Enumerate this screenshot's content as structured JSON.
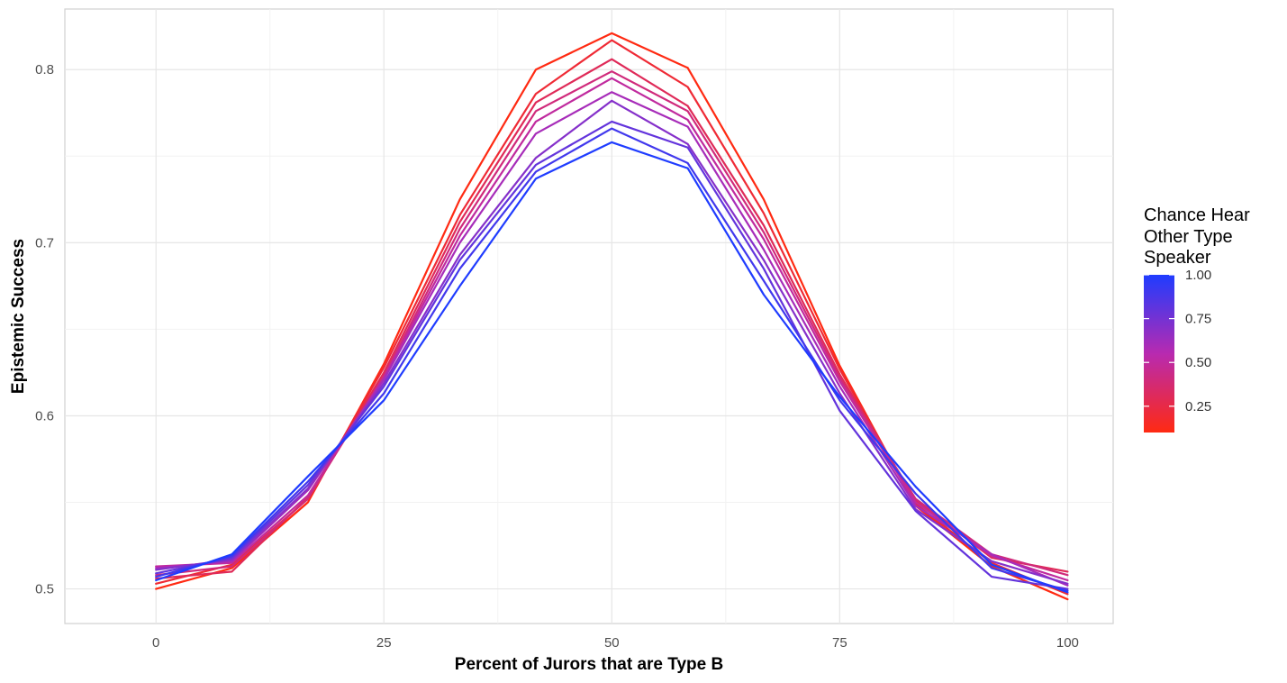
{
  "chart_data": {
    "type": "line",
    "xlabel": "Percent of Jurors that are Type B",
    "ylabel": "Epistemic Success",
    "xlim": [
      -10,
      105
    ],
    "ylim": [
      0.48,
      0.835
    ],
    "xticks": [
      0,
      25,
      50,
      75,
      100
    ],
    "xtick_labels": [
      "0",
      "25",
      "50",
      "75",
      "100"
    ],
    "yticks": [
      0.5,
      0.6,
      0.7,
      0.8
    ],
    "ytick_labels": [
      "0.5",
      "0.6",
      "0.7",
      "0.8"
    ],
    "grid": true,
    "legend": {
      "title_lines": [
        "Chance Hear",
        "Other Type",
        "Speaker"
      ],
      "type": "colorbar",
      "placement": "right",
      "range": [
        0.1,
        1.0
      ],
      "ticks": [
        1.0,
        0.75,
        0.5,
        0.25
      ],
      "tick_labels": [
        "1.00",
        "0.75",
        "0.50",
        "0.25"
      ],
      "color_low": "#ff2a12",
      "color_high": "#1f3cff"
    },
    "x": [
      0,
      8.33,
      16.67,
      25,
      33.33,
      41.67,
      50,
      58.33,
      66.67,
      75,
      83.33,
      91.67,
      100
    ],
    "series": [
      {
        "level": 0.1,
        "values": [
          0.5,
          0.512,
          0.55,
          0.63,
          0.725,
          0.8,
          0.821,
          0.801,
          0.725,
          0.629,
          0.548,
          0.513,
          0.494
        ]
      },
      {
        "level": 0.2,
        "values": [
          0.503,
          0.514,
          0.552,
          0.628,
          0.716,
          0.786,
          0.817,
          0.79,
          0.717,
          0.627,
          0.549,
          0.515,
          0.497
        ]
      },
      {
        "level": 0.3,
        "values": [
          0.506,
          0.51,
          0.553,
          0.625,
          0.712,
          0.781,
          0.806,
          0.779,
          0.71,
          0.624,
          0.551,
          0.518,
          0.51
        ]
      },
      {
        "level": 0.4,
        "values": [
          0.508,
          0.513,
          0.552,
          0.623,
          0.708,
          0.776,
          0.799,
          0.776,
          0.706,
          0.622,
          0.552,
          0.52,
          0.508
        ]
      },
      {
        "level": 0.5,
        "values": [
          0.513,
          0.515,
          0.554,
          0.622,
          0.704,
          0.77,
          0.795,
          0.771,
          0.702,
          0.62,
          0.55,
          0.519,
          0.505
        ]
      },
      {
        "level": 0.6,
        "values": [
          0.512,
          0.516,
          0.557,
          0.621,
          0.7,
          0.763,
          0.787,
          0.767,
          0.696,
          0.617,
          0.548,
          0.52,
          0.502
        ]
      },
      {
        "level": 0.7,
        "values": [
          0.511,
          0.517,
          0.558,
          0.619,
          0.693,
          0.749,
          0.782,
          0.757,
          0.69,
          0.613,
          0.546,
          0.516,
          0.503
        ]
      },
      {
        "level": 0.8,
        "values": [
          0.509,
          0.518,
          0.56,
          0.617,
          0.69,
          0.745,
          0.77,
          0.755,
          0.685,
          0.603,
          0.545,
          0.507,
          0.5
        ]
      },
      {
        "level": 0.9,
        "values": [
          0.507,
          0.519,
          0.562,
          0.613,
          0.685,
          0.741,
          0.766,
          0.746,
          0.678,
          0.609,
          0.555,
          0.512,
          0.499
        ]
      },
      {
        "level": 1.0,
        "values": [
          0.505,
          0.52,
          0.565,
          0.609,
          0.675,
          0.737,
          0.758,
          0.743,
          0.67,
          0.611,
          0.559,
          0.514,
          0.498
        ]
      }
    ]
  }
}
